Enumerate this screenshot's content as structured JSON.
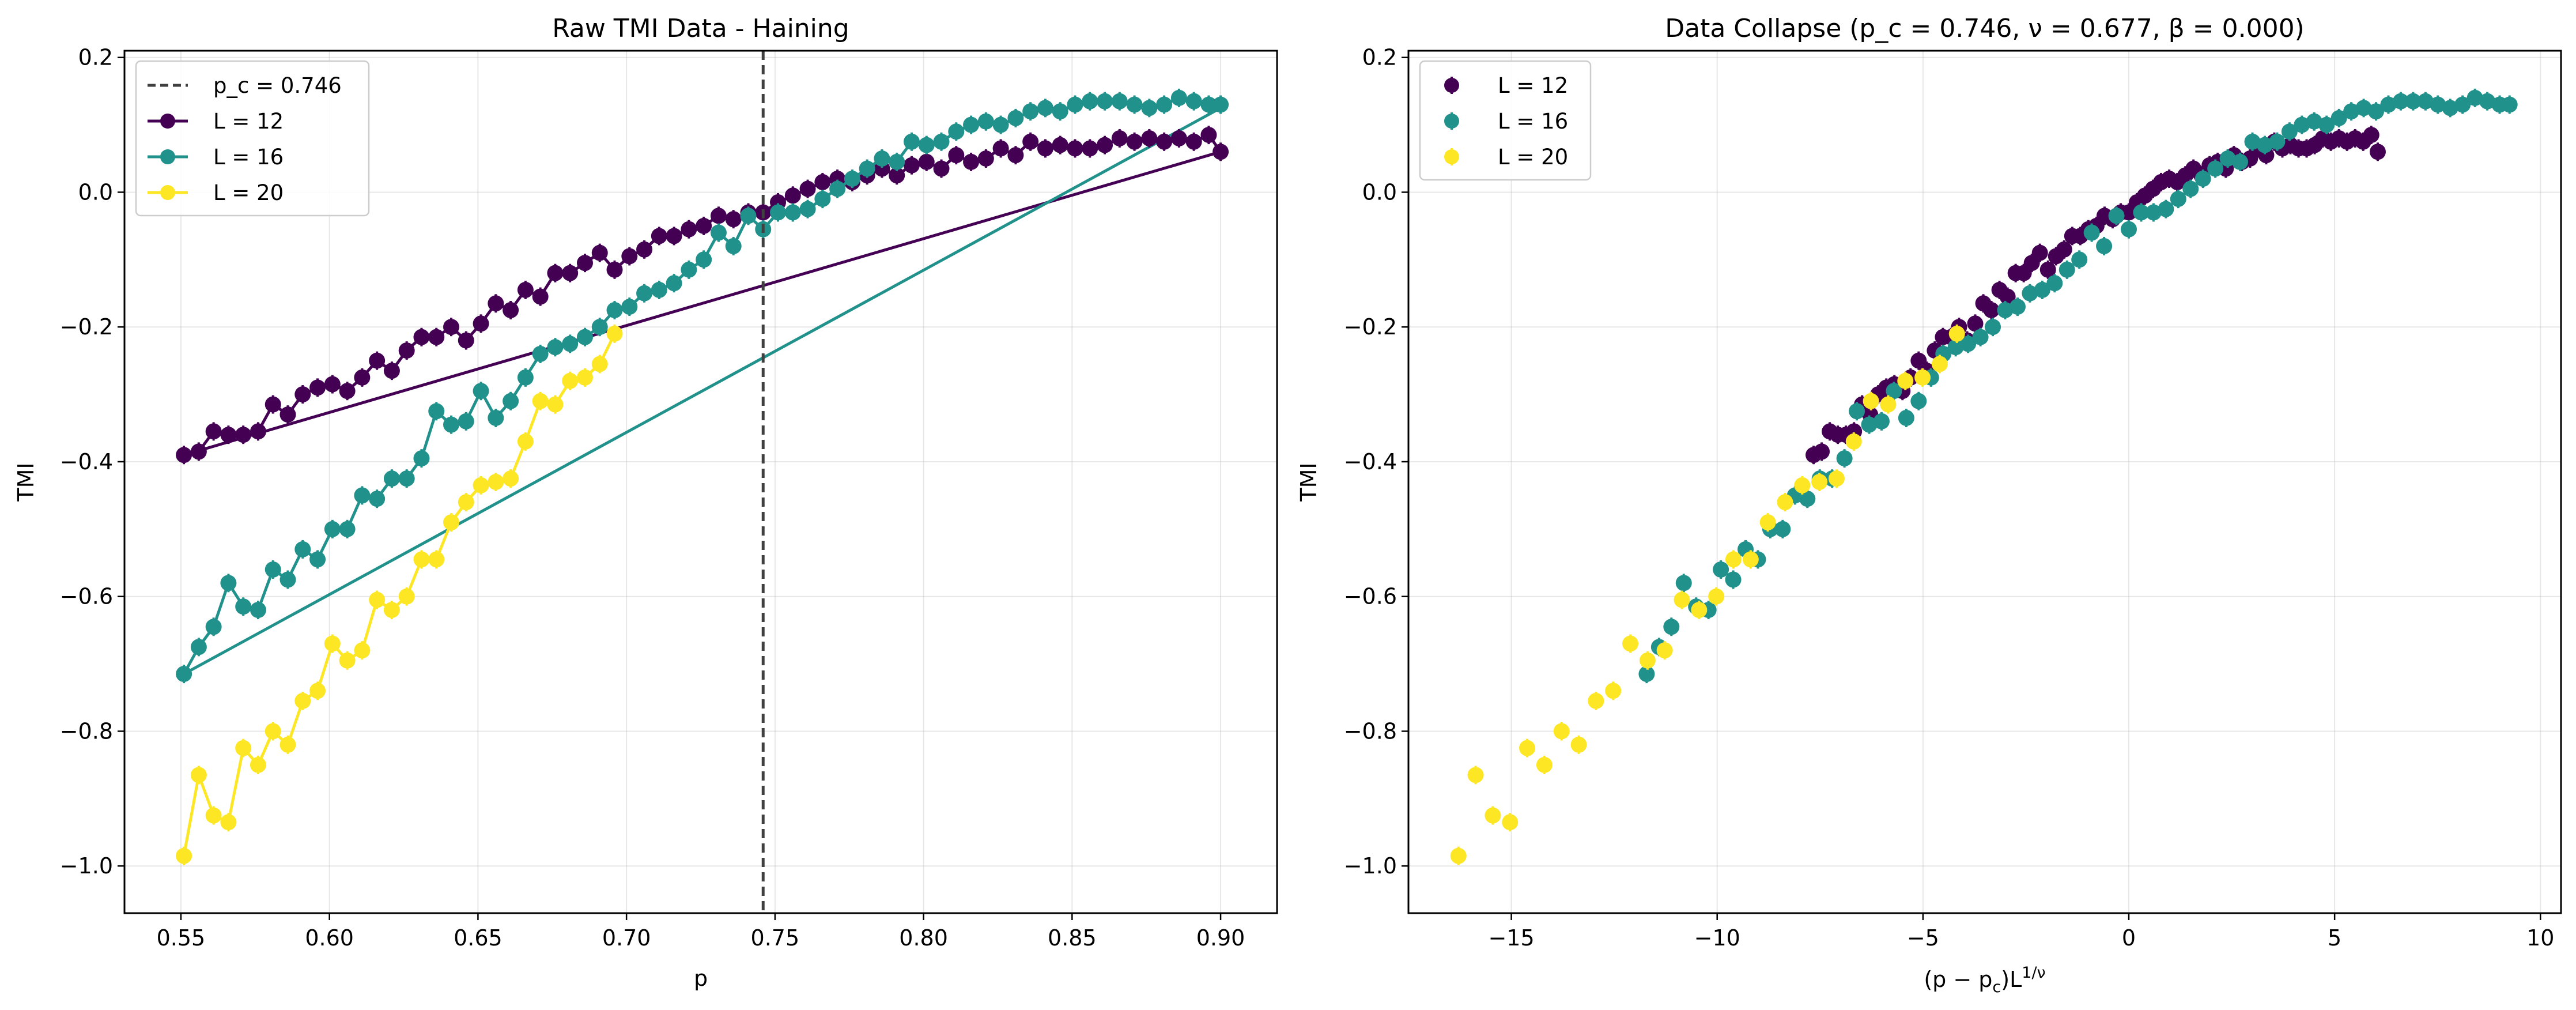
{
  "colors": {
    "L12": "#440154",
    "L16": "#21918c",
    "L20": "#fde725",
    "pc_line": "#404040"
  },
  "chart_data": [
    {
      "type": "line",
      "title": "Raw TMI Data - Haining",
      "xlabel": "p",
      "ylabel": "TMI",
      "xlim": [
        0.531,
        0.919
      ],
      "ylim": [
        -1.07,
        0.21
      ],
      "xticks": [
        "0.55",
        "0.60",
        "0.65",
        "0.70",
        "0.75",
        "0.80",
        "0.85",
        "0.90"
      ],
      "yticks": [
        "−1.0",
        "−0.8",
        "−0.6",
        "−0.4",
        "−0.2",
        "0.0",
        "0.2"
      ],
      "grid": true,
      "legend_position": "top-left",
      "vline": {
        "x": 0.746,
        "label": "p_c = 0.746"
      },
      "series": [
        {
          "name": "L = 12",
          "color": "#440154",
          "x": [
            0.551,
            0.556,
            0.561,
            0.566,
            0.571,
            0.576,
            0.581,
            0.586,
            0.591,
            0.596,
            0.601,
            0.606,
            0.611,
            0.616,
            0.621,
            0.626,
            0.631,
            0.636,
            0.641,
            0.646,
            0.651,
            0.656,
            0.661,
            0.666,
            0.671,
            0.676,
            0.681,
            0.686,
            0.691,
            0.696,
            0.701,
            0.706,
            0.711,
            0.716,
            0.721,
            0.726,
            0.731,
            0.736,
            0.741,
            0.746,
            0.751,
            0.756,
            0.761,
            0.766,
            0.771,
            0.776,
            0.781,
            0.786,
            0.791,
            0.796,
            0.801,
            0.806,
            0.811,
            0.816,
            0.821,
            0.826,
            0.831,
            0.836,
            0.841,
            0.846,
            0.851,
            0.856,
            0.861,
            0.866,
            0.871,
            0.876,
            0.881,
            0.886,
            0.891,
            0.896,
            0.9
          ],
          "y": [
            -0.39,
            -0.385,
            -0.355,
            -0.36,
            -0.36,
            -0.355,
            -0.315,
            -0.33,
            -0.3,
            -0.29,
            -0.285,
            -0.295,
            -0.275,
            -0.25,
            -0.265,
            -0.235,
            -0.215,
            -0.215,
            -0.2,
            -0.22,
            -0.195,
            -0.165,
            -0.175,
            -0.145,
            -0.155,
            -0.12,
            -0.12,
            -0.105,
            -0.09,
            -0.115,
            -0.095,
            -0.085,
            -0.065,
            -0.065,
            -0.055,
            -0.05,
            -0.035,
            -0.04,
            -0.03,
            -0.03,
            -0.015,
            -0.005,
            0.005,
            0.015,
            0.02,
            0.015,
            0.025,
            0.035,
            0.025,
            0.04,
            0.045,
            0.035,
            0.055,
            0.045,
            0.05,
            0.065,
            0.055,
            0.075,
            0.065,
            0.07,
            0.065,
            0.065,
            0.07,
            0.08,
            0.075,
            0.08,
            0.075,
            0.08,
            0.075,
            0.085,
            0.06
          ]
        },
        {
          "name": "L = 16",
          "color": "#21918c",
          "x": [
            0.551,
            0.556,
            0.561,
            0.566,
            0.571,
            0.576,
            0.581,
            0.586,
            0.591,
            0.596,
            0.601,
            0.606,
            0.611,
            0.616,
            0.621,
            0.626,
            0.631,
            0.636,
            0.641,
            0.646,
            0.651,
            0.656,
            0.661,
            0.666,
            0.671,
            0.676,
            0.681,
            0.686,
            0.691,
            0.696,
            0.701,
            0.706,
            0.711,
            0.716,
            0.721,
            0.726,
            0.731,
            0.736,
            0.741,
            0.746,
            0.751,
            0.756,
            0.761,
            0.766,
            0.771,
            0.776,
            0.781,
            0.786,
            0.791,
            0.796,
            0.801,
            0.806,
            0.811,
            0.816,
            0.821,
            0.826,
            0.831,
            0.836,
            0.841,
            0.846,
            0.851,
            0.856,
            0.861,
            0.866,
            0.871,
            0.876,
            0.881,
            0.886,
            0.891,
            0.896,
            0.9
          ],
          "y": [
            -0.715,
            -0.675,
            -0.645,
            -0.58,
            -0.615,
            -0.62,
            -0.56,
            -0.575,
            -0.53,
            -0.545,
            -0.5,
            -0.5,
            -0.45,
            -0.455,
            -0.425,
            -0.425,
            -0.395,
            -0.325,
            -0.345,
            -0.34,
            -0.295,
            -0.335,
            -0.31,
            -0.275,
            -0.24,
            -0.23,
            -0.225,
            -0.215,
            -0.2,
            -0.175,
            -0.17,
            -0.15,
            -0.145,
            -0.135,
            -0.115,
            -0.1,
            -0.06,
            -0.08,
            -0.035,
            -0.055,
            -0.03,
            -0.03,
            -0.025,
            -0.01,
            0.005,
            0.02,
            0.035,
            0.05,
            0.045,
            0.075,
            0.07,
            0.075,
            0.09,
            0.1,
            0.105,
            0.1,
            0.11,
            0.12,
            0.125,
            0.12,
            0.13,
            0.135,
            0.135,
            0.135,
            0.13,
            0.125,
            0.13,
            0.14,
            0.135,
            0.13,
            0.13
          ]
        },
        {
          "name": "L = 20",
          "color": "#fde725",
          "x": [
            0.551,
            0.556,
            0.561,
            0.566,
            0.571,
            0.576,
            0.581,
            0.586,
            0.591,
            0.596,
            0.601,
            0.606,
            0.611,
            0.616,
            0.621,
            0.626,
            0.631,
            0.636,
            0.641,
            0.646,
            0.651,
            0.656,
            0.661,
            0.666,
            0.671,
            0.676,
            0.681,
            0.686,
            0.691,
            0.696,
            0.701
          ],
          "y": [
            -0.985,
            -0.865,
            -0.925,
            -0.935,
            -0.825,
            -0.85,
            -0.8,
            -0.82,
            -0.755,
            -0.74,
            -0.67,
            -0.695,
            -0.68,
            -0.605,
            -0.62,
            -0.6,
            -0.545,
            -0.545,
            -0.49,
            -0.46,
            -0.435,
            -0.43,
            -0.425,
            -0.37,
            -0.31,
            -0.315,
            -0.28,
            -0.275,
            -0.255,
            -0.21,
            null
          ]
        }
      ],
      "fit_lines": [
        {
          "series": "L = 12",
          "x": [
            0.551,
            0.9
          ],
          "y": [
            -0.39,
            0.06
          ]
        },
        {
          "series": "L = 16",
          "x": [
            0.551,
            0.9
          ],
          "y": [
            -0.715,
            0.125
          ]
        }
      ]
    },
    {
      "type": "scatter",
      "title": "Data Collapse (p_c = 0.746, ν = 0.677, β = 0.000)",
      "xlabel": "(p − p_c)L^{1/ν}",
      "xlabel_main": "(p − p",
      "xlabel_sub": "c",
      "xlabel_mid": ")L",
      "xlabel_sup": "1/ν",
      "ylabel": "TMI",
      "xlim": [
        -17.5,
        10.5
      ],
      "ylim": [
        -1.07,
        0.21
      ],
      "xticks": [
        "−15",
        "−10",
        "−5",
        "0",
        "5",
        "10"
      ],
      "xtick_values": [
        -15,
        -10,
        -5,
        0,
        5,
        10
      ],
      "yticks": [
        "−1.0",
        "−0.8",
        "−0.6",
        "−0.4",
        "−0.2",
        "0.0",
        "0.2"
      ],
      "grid": true,
      "legend_position": "top-left",
      "nu": 0.677,
      "p_c": 0.746
    }
  ]
}
